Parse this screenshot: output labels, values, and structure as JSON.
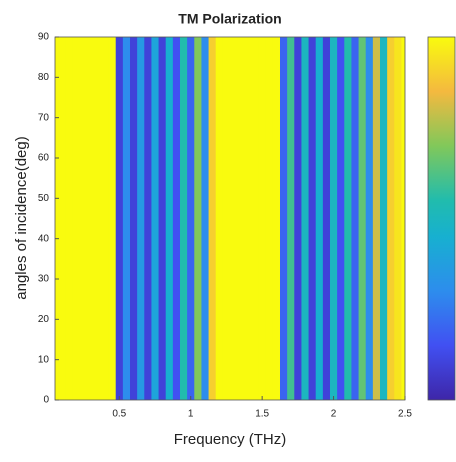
{
  "chart_data": {
    "type": "heatmap",
    "title": "TM Polarization",
    "xlabel": "Frequency (THz)",
    "ylabel": "angles of incidence(deg)",
    "xlim": [
      0.05,
      2.5
    ],
    "ylim": [
      0,
      90
    ],
    "xticks": [
      0.5,
      1,
      1.5,
      2,
      2.5
    ],
    "yticks": [
      0,
      10,
      20,
      30,
      40,
      50,
      60,
      70,
      80,
      90
    ],
    "colormap": "parula",
    "colorbar": true,
    "x": [
      0.05,
      0.1,
      0.15,
      0.2,
      0.25,
      0.3,
      0.35,
      0.4,
      0.45,
      0.5,
      0.55,
      0.6,
      0.65,
      0.7,
      0.75,
      0.8,
      0.85,
      0.9,
      0.95,
      1.0,
      1.05,
      1.1,
      1.15,
      1.2,
      1.25,
      1.3,
      1.35,
      1.4,
      1.45,
      1.5,
      1.55,
      1.6,
      1.65,
      1.7,
      1.75,
      1.8,
      1.85,
      1.9,
      1.95,
      2.0,
      2.05,
      2.1,
      2.15,
      2.2,
      2.25,
      2.3,
      2.35,
      2.4,
      2.45,
      2.5
    ],
    "values": [
      1,
      1,
      1,
      1,
      1,
      1,
      1,
      1,
      1,
      0.1,
      0.3,
      0.1,
      0.35,
      0.1,
      0.4,
      0.1,
      0.45,
      0.15,
      0.55,
      0.2,
      0.7,
      0.3,
      0.9,
      1,
      1,
      1,
      1,
      1,
      1,
      1,
      1,
      1,
      0.2,
      0.6,
      0.1,
      0.5,
      0.1,
      0.45,
      0.1,
      0.5,
      0.15,
      0.55,
      0.2,
      0.65,
      0.3,
      0.8,
      0.5,
      0.9,
      0.95,
      1
    ]
  }
}
